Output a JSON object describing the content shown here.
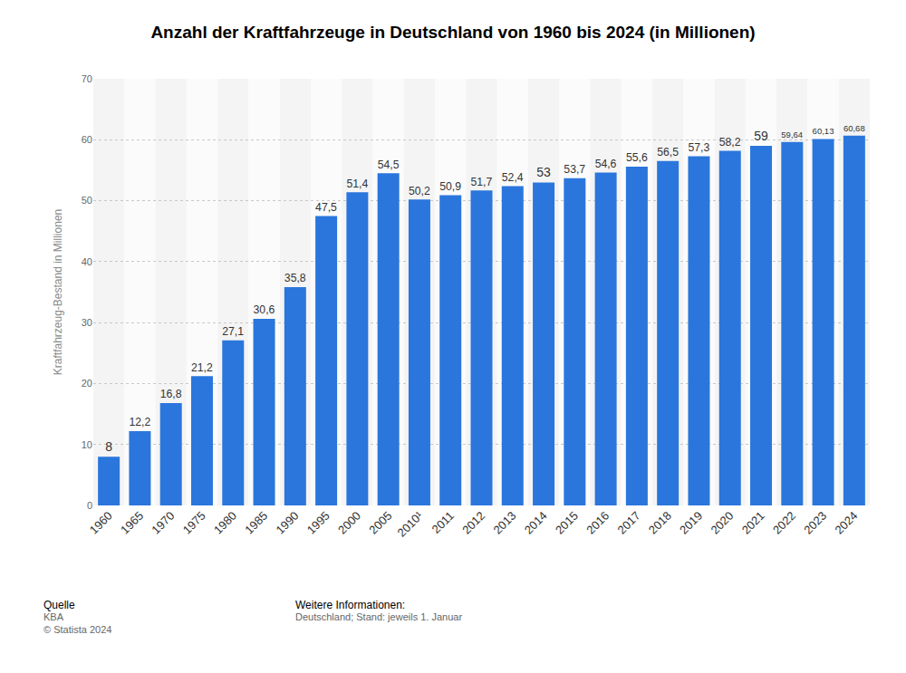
{
  "chart_data": {
    "type": "bar",
    "title": "Anzahl der Kraftfahrzeuge in Deutschland von 1960 bis 2024 (in Millionen)",
    "y_label": "Kraftfahrzeug-Bestand in Millionen",
    "categories": [
      "1960",
      "1965",
      "1970",
      "1975",
      "1980",
      "1985",
      "1990",
      "1995",
      "2000",
      "2005",
      "2010¹",
      "2011",
      "2012",
      "2013",
      "2014",
      "2015",
      "2016",
      "2017",
      "2018",
      "2019",
      "2020",
      "2021",
      "2022",
      "2023",
      "2024"
    ],
    "values": [
      8,
      12.2,
      16.8,
      21.2,
      27.1,
      30.6,
      35.8,
      47.5,
      51.4,
      54.5,
      50.2,
      50.9,
      51.7,
      52.4,
      53,
      53.7,
      54.6,
      55.6,
      56.5,
      57.3,
      58.2,
      59,
      59.64,
      60.13,
      60.68
    ],
    "value_labels": [
      "8",
      "12,2",
      "16,8",
      "21,2",
      "27,1",
      "30,6",
      "35,8",
      "47,5",
      "51,4",
      "54,5",
      "50,2",
      "50,9",
      "51,7",
      "52,4",
      "53",
      "53,7",
      "54,6",
      "55,6",
      "56,5",
      "57,3",
      "58,2",
      "59",
      "59,64",
      "60,13",
      "60,68"
    ],
    "color": "#2a76dd",
    "ylim": [
      0,
      70
    ],
    "yticks": [
      0,
      10,
      20,
      30,
      40,
      50,
      60,
      70
    ],
    "grid": true,
    "data_labels": true,
    "source": {
      "heading": "Quelle",
      "lines": [
        "KBA",
        "© Statista 2024"
      ]
    },
    "notes": {
      "heading": "Weitere Informationen:",
      "lines": [
        "Deutschland; Stand: jeweils 1. Januar"
      ]
    }
  }
}
